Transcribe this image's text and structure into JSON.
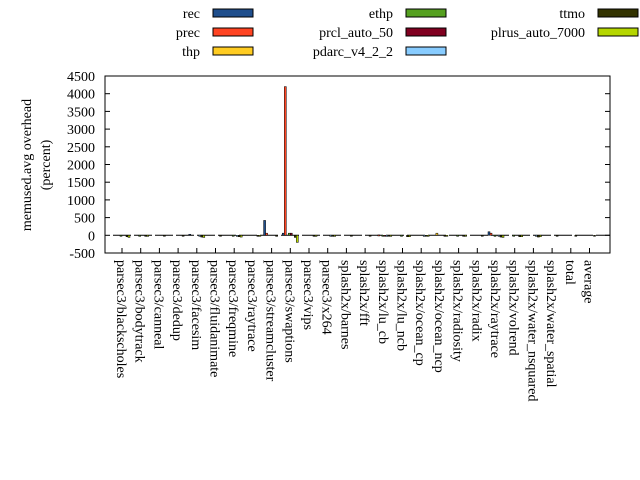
{
  "chart_data": {
    "type": "bar",
    "ylabel": [
      "memused.avg overhead",
      "(percent)"
    ],
    "ylim": [
      -500,
      4500
    ],
    "yticks": [
      "-500",
      "0",
      "500",
      "1000",
      "1500",
      "2000",
      "2500",
      "3000",
      "3500",
      "4000",
      "4500"
    ],
    "grid": false,
    "legend_position": "top",
    "categories": [
      "parsec3/blackscholes",
      "parsec3/bodytrack",
      "parsec3/canneal",
      "parsec3/dedup",
      "parsec3/facesim",
      "parsec3/fluidanimate",
      "parsec3/freqmine",
      "parsec3/raytrace",
      "parsec3/streamcluster",
      "parsec3/swaptions",
      "parsec3/vips",
      "parsec3/x264",
      "splash2x/barnes",
      "splash2x/fft",
      "splash2x/lu_cb",
      "splash2x/lu_ncb",
      "splash2x/ocean_cp",
      "splash2x/ocean_ncp",
      "splash2x/radiosity",
      "splash2x/radix",
      "splash2x/raytrace",
      "splash2x/volrend",
      "splash2x/water_nsquared",
      "splash2x/water_spatial",
      "total",
      "average"
    ],
    "series": [
      {
        "name": "rec",
        "color": "#1f4e8c",
        "values": [
          0,
          0,
          0,
          0,
          30,
          0,
          0,
          0,
          420,
          60,
          0,
          0,
          0,
          0,
          0,
          0,
          0,
          0,
          0,
          0,
          100,
          0,
          0,
          0,
          0,
          0
        ]
      },
      {
        "name": "prec",
        "color": "#ff4422",
        "values": [
          0,
          0,
          0,
          0,
          0,
          0,
          0,
          0,
          60,
          4200,
          0,
          0,
          0,
          0,
          10,
          0,
          0,
          0,
          0,
          0,
          60,
          0,
          0,
          0,
          0,
          0
        ]
      },
      {
        "name": "thp",
        "color": "#ffcc22",
        "values": [
          0,
          0,
          0,
          0,
          0,
          0,
          0,
          0,
          0,
          0,
          0,
          0,
          0,
          0,
          0,
          0,
          0,
          60,
          0,
          0,
          0,
          0,
          0,
          0,
          0,
          0
        ]
      },
      {
        "name": "ethp",
        "color": "#55a020",
        "values": [
          -20,
          -30,
          0,
          0,
          0,
          0,
          -20,
          0,
          0,
          60,
          0,
          0,
          0,
          0,
          -20,
          -30,
          0,
          0,
          -20,
          0,
          -30,
          -20,
          0,
          0,
          0,
          0
        ]
      },
      {
        "name": "prcl_auto_50",
        "color": "#800020",
        "values": [
          0,
          0,
          0,
          0,
          0,
          0,
          0,
          0,
          0,
          60,
          0,
          0,
          0,
          0,
          -20,
          0,
          0,
          0,
          0,
          0,
          0,
          0,
          0,
          0,
          0,
          0
        ]
      },
      {
        "name": "pdarc_v4_2_2",
        "color": "#88ccff",
        "values": [
          0,
          0,
          0,
          0,
          -30,
          0,
          -30,
          0,
          0,
          0,
          0,
          -30,
          0,
          0,
          -30,
          0,
          -30,
          0,
          0,
          0,
          -30,
          0,
          -30,
          0,
          0,
          0
        ]
      },
      {
        "name": "ttmo",
        "color": "#333300",
        "values": [
          -40,
          -30,
          -20,
          -20,
          -50,
          -20,
          -40,
          -30,
          -30,
          -60,
          -30,
          -30,
          -20,
          -10,
          -20,
          -40,
          -20,
          -30,
          -30,
          -10,
          -50,
          -40,
          -50,
          -20,
          -20,
          -20
        ]
      },
      {
        "name": "plrus_auto_7000",
        "color": "#b5d600",
        "values": [
          -60,
          -30,
          0,
          0,
          -60,
          0,
          -50,
          -20,
          0,
          -200,
          -30,
          -30,
          0,
          0,
          -30,
          -40,
          -30,
          -20,
          -30,
          0,
          -60,
          -40,
          -40,
          0,
          0,
          0
        ]
      }
    ]
  }
}
